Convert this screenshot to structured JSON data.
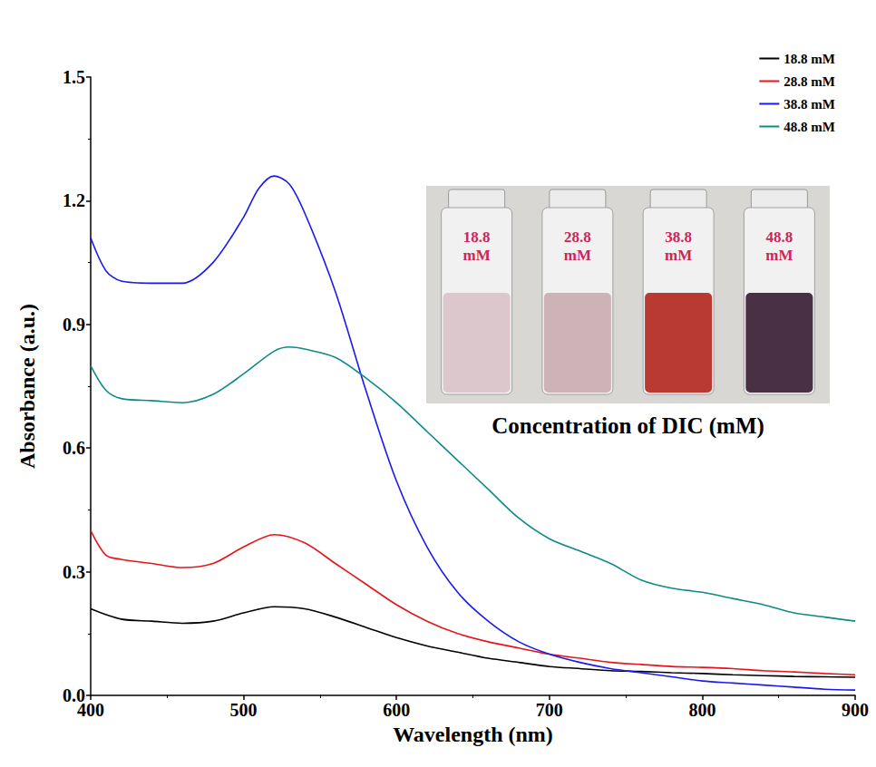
{
  "chart_data": {
    "type": "line",
    "x_label": "Wavelength (nm)",
    "y_label": "Absorbance (a.u.)",
    "xlim": [
      400,
      900
    ],
    "xticks": [
      400,
      500,
      600,
      700,
      800,
      900
    ],
    "ylim": [
      0,
      1.5
    ],
    "yticks": [
      {
        "value": 0,
        "label": "0.0"
      },
      0.3,
      0.6,
      0.9,
      1.2,
      1.5
    ],
    "grid": false,
    "legend": "upper right",
    "series": [
      {
        "name": "18.8 mM",
        "color": "#000000",
        "x": [
          400,
          420,
          440,
          460,
          480,
          500,
          520,
          540,
          560,
          580,
          600,
          620,
          640,
          660,
          680,
          700,
          720,
          740,
          760,
          780,
          800,
          820,
          840,
          860,
          880,
          900
        ],
        "values": [
          0.21,
          0.185,
          0.18,
          0.175,
          0.18,
          0.2,
          0.215,
          0.21,
          0.19,
          0.165,
          0.14,
          0.12,
          0.105,
          0.09,
          0.08,
          0.07,
          0.065,
          0.06,
          0.058,
          0.055,
          0.053,
          0.05,
          0.048,
          0.046,
          0.045,
          0.044
        ]
      },
      {
        "name": "28.8 mM",
        "color": "#e8141c",
        "x": [
          400,
          410,
          420,
          440,
          460,
          480,
          500,
          520,
          540,
          560,
          580,
          600,
          620,
          640,
          660,
          680,
          700,
          720,
          740,
          760,
          780,
          800,
          820,
          840,
          860,
          880,
          900
        ],
        "values": [
          0.4,
          0.34,
          0.33,
          0.32,
          0.31,
          0.32,
          0.36,
          0.39,
          0.37,
          0.32,
          0.27,
          0.22,
          0.18,
          0.15,
          0.13,
          0.115,
          0.1,
          0.09,
          0.08,
          0.075,
          0.07,
          0.068,
          0.065,
          0.06,
          0.057,
          0.053,
          0.05
        ]
      },
      {
        "name": "38.8 mM",
        "color": "#1a1aee",
        "x": [
          400,
          410,
          420,
          440,
          460,
          480,
          500,
          510,
          520,
          530,
          540,
          560,
          580,
          600,
          620,
          640,
          660,
          680,
          700,
          720,
          740,
          760,
          780,
          800,
          820,
          840,
          860,
          880,
          900
        ],
        "values": [
          1.11,
          1.03,
          1.005,
          1.0,
          1.0,
          1.05,
          1.16,
          1.23,
          1.26,
          1.24,
          1.17,
          0.98,
          0.74,
          0.52,
          0.36,
          0.25,
          0.18,
          0.13,
          0.1,
          0.08,
          0.065,
          0.055,
          0.045,
          0.035,
          0.03,
          0.025,
          0.02,
          0.015,
          0.013
        ]
      },
      {
        "name": "48.8 mM",
        "color": "#0e8a8a",
        "x": [
          400,
          410,
          420,
          440,
          460,
          480,
          500,
          520,
          530,
          540,
          560,
          580,
          600,
          620,
          640,
          660,
          680,
          700,
          720,
          740,
          760,
          780,
          800,
          820,
          840,
          860,
          880,
          900
        ],
        "values": [
          0.8,
          0.74,
          0.72,
          0.715,
          0.71,
          0.73,
          0.78,
          0.835,
          0.845,
          0.84,
          0.82,
          0.77,
          0.71,
          0.64,
          0.57,
          0.5,
          0.43,
          0.38,
          0.35,
          0.32,
          0.28,
          0.26,
          0.25,
          0.235,
          0.22,
          0.2,
          0.19,
          0.18
        ]
      }
    ],
    "inset": {
      "labels": [
        "18.8 mM",
        "28.8 mM",
        "38.8 mM",
        "48.8 mM"
      ],
      "colors": [
        "#dcc8cc",
        "#cdb3b8",
        "#b83a32",
        "#4a3045"
      ],
      "caption": "Concentration of DIC (mM)"
    }
  }
}
